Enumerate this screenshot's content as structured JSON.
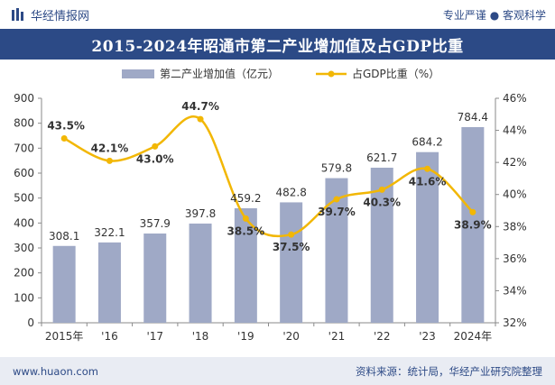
{
  "header": {
    "brand_name": "华经情报网",
    "slogan": "专业严谨 ● 客观科学"
  },
  "chart_data": {
    "type": "bar",
    "title": "2015-2024年昭通市第二产业增加值及占GDP比重",
    "categories": [
      "2015年",
      "'16",
      "'17",
      "'18",
      "'19",
      "'20",
      "'21",
      "'22",
      "'23",
      "2024年"
    ],
    "series": [
      {
        "name": "第二产业增加值（亿元）",
        "type": "bar",
        "axis": "left",
        "values": [
          308.1,
          322.1,
          357.9,
          397.8,
          459.2,
          482.8,
          579.8,
          621.7,
          684.2,
          784.4
        ],
        "labels": [
          "308.1",
          "322.1",
          "357.9",
          "397.8",
          "459.2",
          "482.8",
          "579.8",
          "621.7",
          "684.2",
          "784.4"
        ]
      },
      {
        "name": "占GDP比重（%）",
        "type": "line",
        "axis": "right",
        "values": [
          43.5,
          42.1,
          43.0,
          44.7,
          38.5,
          37.5,
          39.7,
          40.3,
          41.6,
          38.9
        ],
        "labels": [
          "43.5%",
          "42.1%",
          "43.0%",
          "44.7%",
          "38.5%",
          "37.5%",
          "39.7%",
          "40.3%",
          "41.6%",
          "38.9%"
        ]
      }
    ],
    "y_left": {
      "min": 0,
      "max": 900,
      "ticks": [
        "0",
        "100",
        "200",
        "300",
        "400",
        "500",
        "600",
        "700",
        "800",
        "900"
      ]
    },
    "y_right": {
      "min": 32,
      "max": 46,
      "ticks": [
        "32%",
        "34%",
        "36%",
        "38%",
        "40%",
        "42%",
        "44%",
        "46%"
      ]
    },
    "grid": false,
    "legend": "top-center",
    "colors": {
      "bar": "#9fa9c6",
      "line": "#f2b705",
      "axis": "#8a8a8a",
      "text": "#333333"
    }
  },
  "footer": {
    "url": "www.huaon.com",
    "source": "资料来源：统计局，华经产业研究院整理"
  }
}
